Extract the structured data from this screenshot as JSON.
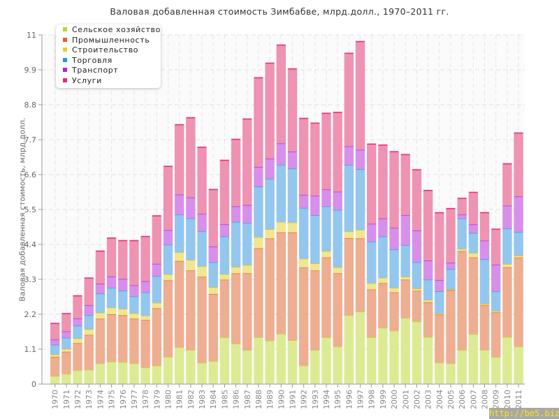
{
  "chart_data": {
    "type": "bar",
    "stacked": true,
    "title": "Валовая добавленная стоимость Зимбабве, млрд.долл., 1970–2011 гг.",
    "xlabel": "",
    "ylabel": "Валовая добавленная стоимость, млрд.долл.",
    "ylim": [
      0,
      11
    ],
    "yticks": [
      "0",
      "1.1",
      "2.2",
      "3.3",
      "4.4",
      "5.5",
      "6.6",
      "7.7",
      "8.8",
      "9.9",
      "11"
    ],
    "grid": true,
    "legend_position": "top-left",
    "categories": [
      "1970",
      "1971",
      "1972",
      "1973",
      "1974",
      "1975",
      "1976",
      "1977",
      "1978",
      "1979",
      "1980",
      "1981",
      "1982",
      "1983",
      "1984",
      "1985",
      "1986",
      "1987",
      "1988",
      "1989",
      "1990",
      "1991",
      "1992",
      "1993",
      "1994",
      "1995",
      "1996",
      "1997",
      "1998",
      "1999",
      "2000",
      "2001",
      "2002",
      "2003",
      "2004",
      "2005",
      "2006",
      "2007",
      "2008",
      "2009",
      "2010",
      "2011"
    ],
    "series": [
      {
        "name": "Сельское хозяйство",
        "color": "#b5d62a",
        "fill": "#dceb93",
        "stroke": "#c6dc3c",
        "values": [
          0.26,
          0.33,
          0.44,
          0.46,
          0.66,
          0.71,
          0.7,
          0.66,
          0.53,
          0.59,
          0.87,
          1.17,
          1.08,
          0.68,
          0.73,
          1.48,
          1.28,
          1.08,
          1.48,
          1.38,
          1.59,
          1.39,
          0.59,
          1.08,
          1.48,
          1.19,
          2.18,
          2.29,
          1.48,
          1.78,
          1.69,
          2.09,
          1.98,
          1.49,
          0.68,
          0.66,
          1.08,
          1.58,
          1.08,
          0.86,
          1.49,
          1.19
        ]
      },
      {
        "name": "Промышленность",
        "color": "#e8602a",
        "fill": "#eeae92",
        "stroke": "#e6702e",
        "values": [
          0.61,
          0.7,
          0.86,
          1.1,
          1.41,
          1.5,
          1.48,
          1.41,
          1.5,
          1.81,
          2.41,
          2.72,
          2.51,
          2.71,
          2.12,
          1.82,
          2.22,
          2.42,
          2.81,
          3.22,
          3.2,
          3.4,
          3.09,
          2.51,
          2.52,
          2.31,
          2.43,
          2.31,
          1.51,
          1.41,
          1.21,
          1.21,
          0.97,
          1.1,
          1.52,
          2.31,
          3.12,
          2.42,
          1.41,
          1.41,
          2.2,
          2.81
        ]
      },
      {
        "name": "Строительство",
        "color": "#e2d22a",
        "fill": "#f0e68f",
        "stroke": "#e0c22a",
        "values": [
          0.07,
          0.09,
          0.15,
          0.18,
          0.19,
          0.21,
          0.2,
          0.17,
          0.14,
          0.17,
          0.19,
          0.27,
          0.33,
          0.33,
          0.21,
          0.17,
          0.2,
          0.26,
          0.35,
          0.29,
          0.33,
          0.31,
          0.28,
          0.22,
          0.2,
          0.19,
          0.21,
          0.27,
          0.2,
          0.17,
          0.14,
          0.09,
          0.07,
          0.07,
          0.03,
          0.02,
          0.07,
          0.14,
          0.04,
          0.04,
          0.1,
          0.06
        ]
      },
      {
        "name": "Торговля",
        "color": "#2a96de",
        "fill": "#93c7ee",
        "stroke": "#3a9fdc",
        "values": [
          0.31,
          0.35,
          0.4,
          0.44,
          0.6,
          0.62,
          0.57,
          0.53,
          0.73,
          0.84,
          0.93,
          1.19,
          1.31,
          1.1,
          0.79,
          1.19,
          1.42,
          1.32,
          1.59,
          1.59,
          1.8,
          1.7,
          1.6,
          1.52,
          1.41,
          1.81,
          2.1,
          1.91,
          1.31,
          1.3,
          1.21,
          1.0,
          0.83,
          0.64,
          0.7,
          0.64,
          0.96,
          0.63,
          1.41,
          0.62,
          1.12,
          0.74
        ]
      },
      {
        "name": "Транспорт",
        "color": "#a72ade",
        "fill": "#d790ea",
        "stroke": "#a83ad8",
        "values": [
          0.16,
          0.2,
          0.23,
          0.31,
          0.31,
          0.36,
          0.37,
          0.35,
          0.35,
          0.39,
          0.46,
          0.63,
          0.66,
          0.55,
          0.49,
          0.39,
          0.49,
          0.57,
          0.62,
          0.63,
          0.67,
          0.53,
          0.41,
          0.61,
          0.53,
          0.57,
          0.58,
          0.61,
          0.56,
          0.57,
          0.68,
          0.94,
          1.0,
          0.6,
          0.36,
          0.2,
          0.12,
          0.27,
          0.59,
          0.84,
          0.72,
          1.12
        ]
      },
      {
        "name": "Услуги",
        "color": "#e82a78",
        "fill": "#ef93b3",
        "stroke": "#e0357c",
        "values": [
          0.51,
          0.56,
          0.71,
          0.86,
          1.03,
          1.21,
          1.21,
          1.41,
          1.41,
          1.51,
          2.01,
          2.2,
          2.51,
          2.1,
          1.8,
          2.01,
          2.11,
          2.71,
          2.81,
          3.01,
          3.1,
          2.61,
          2.41,
          2.29,
          2.4,
          2.5,
          2.93,
          3.41,
          2.51,
          2.31,
          2.4,
          1.91,
          1.91,
          2.21,
          2.12,
          1.71,
          0.51,
          1.01,
          0.88,
          1.12,
          1.32,
          2.0
        ]
      }
    ]
  },
  "watermark": "http://be5.biz/"
}
